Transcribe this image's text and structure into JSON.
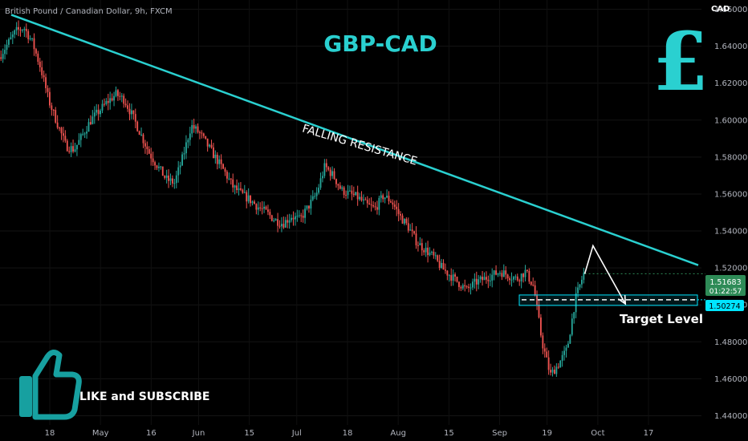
{
  "header": {
    "symbol_label": "British Pound / Canadian Dollar, 9h, FXCM",
    "currency": "CAD"
  },
  "overlay": {
    "title": "GBP-CAD",
    "resistance_label": "FALLING RESISTANCE",
    "target_label": "Target Level",
    "cta_label": "LIKE and SUBSCRIBE",
    "pound_icon": "£"
  },
  "price_badges": {
    "last_price": "1.51683",
    "countdown": "01:22:57",
    "target_price": "1.50274"
  },
  "colors": {
    "up": "#26a69a",
    "down": "#ef5350",
    "accent": "#2ad0d0",
    "badge_green": "#2e8b57",
    "badge_cyan": "#00e5ff"
  },
  "chart_data": {
    "type": "candlestick",
    "title": "GBP-CAD",
    "instrument": "British Pound / Canadian Dollar, 9h, FXCM",
    "currency": "CAD",
    "ylim": [
      1.435,
      1.665
    ],
    "y_ticks": [
      1.44,
      1.46,
      1.48,
      1.5,
      1.52,
      1.54,
      1.56,
      1.58,
      1.6,
      1.62,
      1.64,
      1.66
    ],
    "y_tick_labels": [
      "1.44000",
      "1.46000",
      "1.48000",
      "1.50000",
      "1.52000",
      "1.54000",
      "1.56000",
      "1.58000",
      "1.60000",
      "1.62000",
      "1.64000",
      "1.66000"
    ],
    "x_tick_labels": [
      "18",
      "May",
      "16",
      "Jun",
      "15",
      "Jul",
      "18",
      "Aug",
      "15",
      "Sep",
      "19",
      "Oct",
      "17"
    ],
    "x_tick_fraction": [
      0.0,
      0.0806,
      0.1612,
      0.2366,
      0.3172,
      0.3926,
      0.4732,
      0.5538,
      0.6344,
      0.715,
      0.7903,
      0.871,
      0.9516
    ],
    "trend_points": [
      1.634,
      1.641,
      1.648,
      1.65,
      1.642,
      1.628,
      1.61,
      1.598,
      1.586,
      1.584,
      1.592,
      1.6,
      1.605,
      1.61,
      1.614,
      1.611,
      1.602,
      1.592,
      1.582,
      1.575,
      1.568,
      1.566,
      1.58,
      1.597,
      1.593,
      1.586,
      1.579,
      1.572,
      1.564,
      1.56,
      1.557,
      1.553,
      1.55,
      1.546,
      1.544,
      1.548,
      1.546,
      1.553,
      1.56,
      1.575,
      1.57,
      1.562,
      1.56,
      1.558,
      1.554,
      1.552,
      1.559,
      1.556,
      1.548,
      1.542,
      1.534,
      1.53,
      1.526,
      1.52,
      1.516,
      1.512,
      1.508,
      1.512,
      1.514,
      1.516,
      1.518,
      1.516,
      1.514,
      1.518,
      1.51,
      1.48,
      1.462,
      1.468,
      1.476,
      1.503,
      1.517
    ],
    "trend_start_ratio": 0.0,
    "trend_end_ratio": 0.8336,
    "last_price": 1.51683,
    "target_level": 1.50274,
    "resistance_line": {
      "start": [
        "18 (Apr)",
        1.657
      ],
      "end": [
        "17 (Oct)",
        1.5215
      ]
    },
    "projection": [
      [
        0.8336,
        1.5168
      ],
      [
        0.8454,
        1.532
      ],
      [
        0.8916,
        1.5005
      ]
    ]
  }
}
